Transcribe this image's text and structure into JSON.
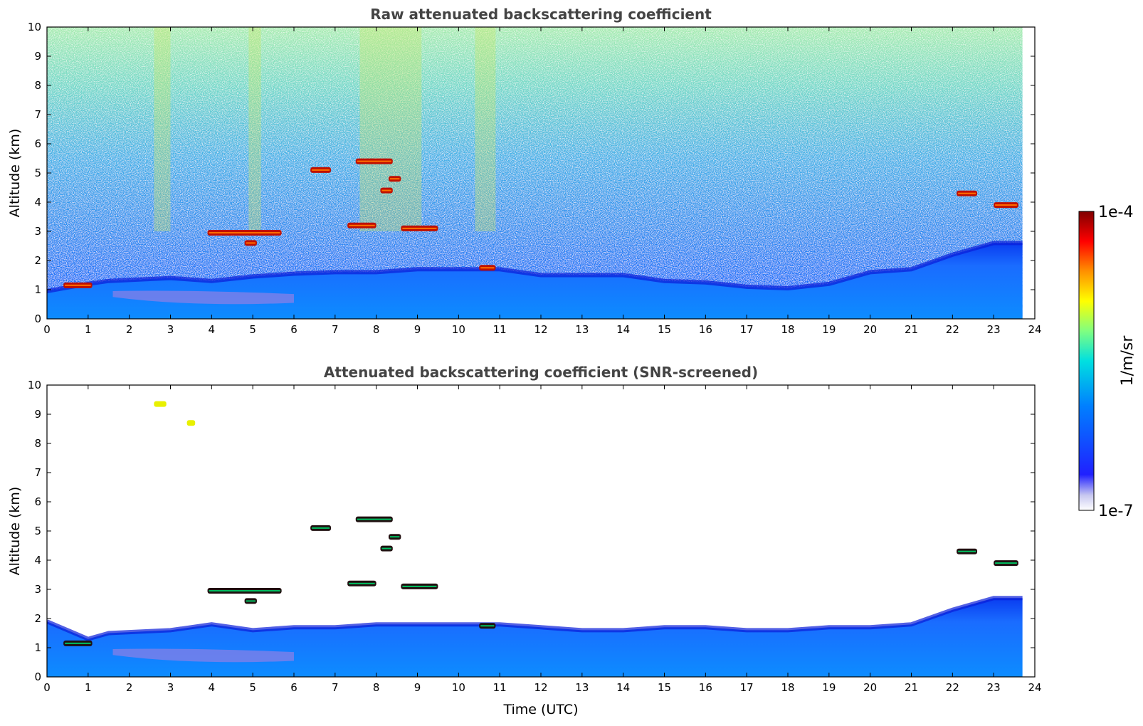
{
  "colormap": {
    "stops": [
      "#ffffff",
      "#d4d4f4",
      "#0000ff",
      "#0080ff",
      "#00e0e0",
      "#80ff80",
      "#ffff00",
      "#ff8000",
      "#ff0000",
      "#800000"
    ],
    "colorbar_max_label": "1e-4",
    "colorbar_min_label": "1e-7",
    "colorbar_unit_label": "1/m/sr",
    "scale": "log",
    "range": [
      1e-07,
      0.0001
    ]
  },
  "chart_data": [
    {
      "type": "heatmap",
      "title": "Raw attenuated backscattering coefficient",
      "xlabel": "",
      "ylabel": "Altitude (km)",
      "xlim": [
        0,
        24
      ],
      "ylim": [
        0,
        10
      ],
      "x_ticks": [
        "0",
        "1",
        "2",
        "3",
        "4",
        "5",
        "6",
        "7",
        "8",
        "9",
        "10",
        "11",
        "12",
        "13",
        "14",
        "15",
        "16",
        "17",
        "18",
        "19",
        "20",
        "21",
        "22",
        "23",
        "24"
      ],
      "y_ticks": [
        "0",
        "1",
        "2",
        "3",
        "4",
        "5",
        "6",
        "7",
        "8",
        "9",
        "10"
      ],
      "data_end_time": 23.7,
      "boundary_layer_top": [
        [
          0,
          0.95
        ],
        [
          1,
          1.2
        ],
        [
          1.5,
          1.3
        ],
        [
          3,
          1.4
        ],
        [
          4,
          1.3
        ],
        [
          5,
          1.45
        ],
        [
          6,
          1.55
        ],
        [
          7,
          1.6
        ],
        [
          8,
          1.6
        ],
        [
          9,
          1.7
        ],
        [
          10,
          1.7
        ],
        [
          11,
          1.7
        ],
        [
          12,
          1.5
        ],
        [
          13,
          1.5
        ],
        [
          14,
          1.5
        ],
        [
          15,
          1.3
        ],
        [
          16,
          1.25
        ],
        [
          17,
          1.1
        ],
        [
          18,
          1.05
        ],
        [
          19,
          1.2
        ],
        [
          20,
          1.6
        ],
        [
          21,
          1.7
        ],
        [
          22,
          2.2
        ],
        [
          23,
          2.6
        ],
        [
          23.7,
          2.6
        ]
      ],
      "cloud_layers": [
        {
          "x0": 0.4,
          "x1": 1.1,
          "alt": 1.15
        },
        {
          "x0": 3.9,
          "x1": 5.7,
          "alt": 2.95
        },
        {
          "x0": 4.8,
          "x1": 5.1,
          "alt": 2.6
        },
        {
          "x0": 6.4,
          "x1": 6.9,
          "alt": 5.1
        },
        {
          "x0": 7.3,
          "x1": 8.0,
          "alt": 3.2
        },
        {
          "x0": 7.5,
          "x1": 8.4,
          "alt": 5.4
        },
        {
          "x0": 8.1,
          "x1": 8.4,
          "alt": 4.4
        },
        {
          "x0": 8.3,
          "x1": 8.6,
          "alt": 4.8
        },
        {
          "x0": 8.6,
          "x1": 9.5,
          "alt": 3.1
        },
        {
          "x0": 10.5,
          "x1": 10.9,
          "alt": 1.75
        },
        {
          "x0": 22.1,
          "x1": 22.6,
          "alt": 4.3
        },
        {
          "x0": 23.0,
          "x1": 23.6,
          "alt": 3.9
        }
      ]
    },
    {
      "type": "heatmap",
      "title": "Attenuated backscattering coefficient (SNR-screened)",
      "xlabel": "Time (UTC)",
      "ylabel": "Altitude (km)",
      "xlim": [
        0,
        24
      ],
      "ylim": [
        0,
        10
      ],
      "x_ticks": [
        "0",
        "1",
        "2",
        "3",
        "4",
        "5",
        "6",
        "7",
        "8",
        "9",
        "10",
        "11",
        "12",
        "13",
        "14",
        "15",
        "16",
        "17",
        "18",
        "19",
        "20",
        "21",
        "22",
        "23",
        "24"
      ],
      "y_ticks": [
        "0",
        "1",
        "2",
        "3",
        "4",
        "5",
        "6",
        "7",
        "8",
        "9",
        "10"
      ],
      "data_end_time": 23.7,
      "boundary_layer_top": [
        [
          0,
          1.9
        ],
        [
          1,
          1.3
        ],
        [
          1.5,
          1.5
        ],
        [
          3,
          1.6
        ],
        [
          4,
          1.8
        ],
        [
          5,
          1.6
        ],
        [
          6,
          1.7
        ],
        [
          7,
          1.7
        ],
        [
          8,
          1.8
        ],
        [
          9,
          1.8
        ],
        [
          10,
          1.8
        ],
        [
          11,
          1.8
        ],
        [
          12,
          1.7
        ],
        [
          13,
          1.6
        ],
        [
          14,
          1.6
        ],
        [
          15,
          1.7
        ],
        [
          16,
          1.7
        ],
        [
          17,
          1.6
        ],
        [
          18,
          1.6
        ],
        [
          19,
          1.7
        ],
        [
          20,
          1.7
        ],
        [
          21,
          1.8
        ],
        [
          22,
          2.3
        ],
        [
          23,
          2.7
        ],
        [
          23.7,
          2.7
        ]
      ],
      "cloud_layers": [
        {
          "x0": 0.4,
          "x1": 1.1,
          "alt": 1.15
        },
        {
          "x0": 2.6,
          "x1": 2.9,
          "alt": 9.35
        },
        {
          "x0": 3.4,
          "x1": 3.6,
          "alt": 8.7
        },
        {
          "x0": 3.9,
          "x1": 5.7,
          "alt": 2.95
        },
        {
          "x0": 4.8,
          "x1": 5.1,
          "alt": 2.6
        },
        {
          "x0": 6.4,
          "x1": 6.9,
          "alt": 5.1
        },
        {
          "x0": 7.3,
          "x1": 8.0,
          "alt": 3.2
        },
        {
          "x0": 7.5,
          "x1": 8.4,
          "alt": 5.4
        },
        {
          "x0": 8.1,
          "x1": 8.4,
          "alt": 4.4
        },
        {
          "x0": 8.3,
          "x1": 8.6,
          "alt": 4.8
        },
        {
          "x0": 8.6,
          "x1": 9.5,
          "alt": 3.1
        },
        {
          "x0": 10.5,
          "x1": 10.9,
          "alt": 1.75
        },
        {
          "x0": 22.1,
          "x1": 22.6,
          "alt": 4.3
        },
        {
          "x0": 23.0,
          "x1": 23.6,
          "alt": 3.9
        }
      ]
    }
  ]
}
